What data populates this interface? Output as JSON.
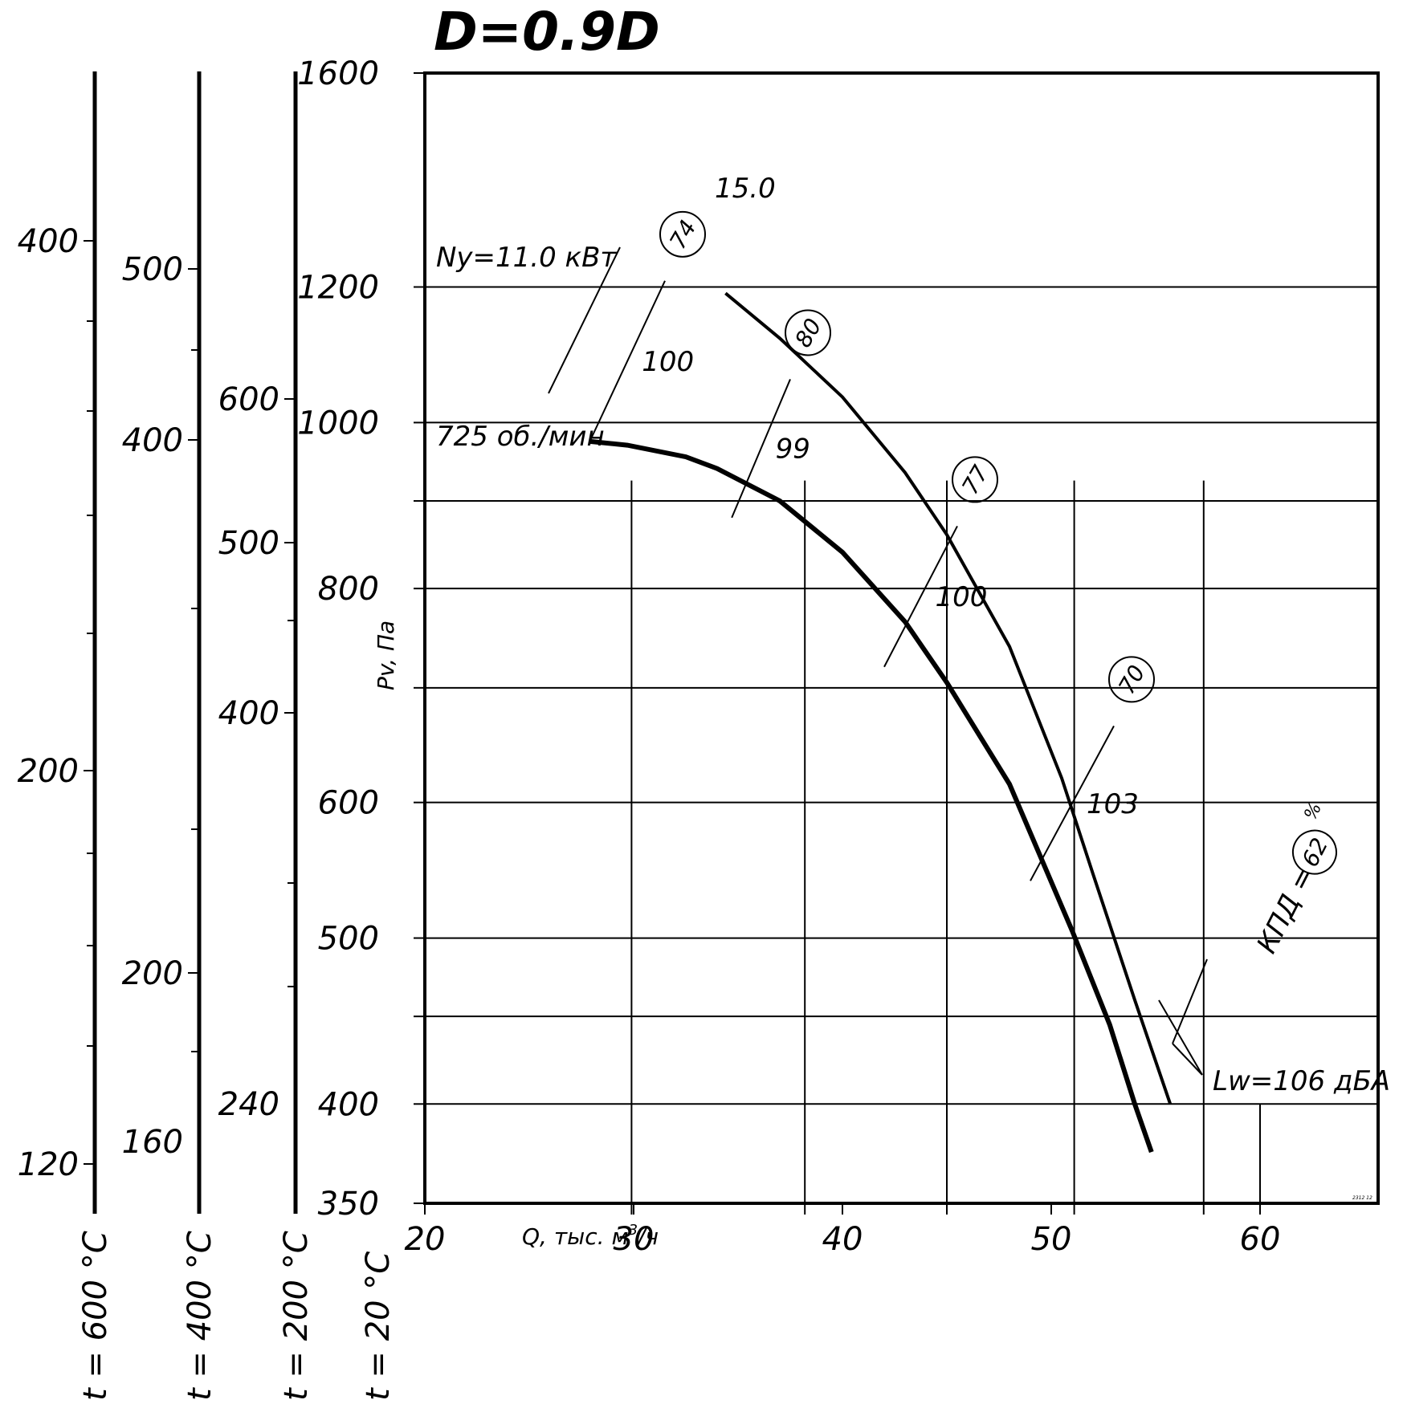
{
  "chart_data": {
    "type": "line",
    "title": "D=0.9D",
    "xlabel_main": "Q, тыс. м",
    "xlabel_sup": "3",
    "xlabel_tail": "/ч",
    "ylabel": "Pv, Па",
    "xlim": [
      20,
      67
    ],
    "ylim": [
      350,
      1600
    ],
    "y_scale": "log",
    "x_ticks": [
      "20",
      "30",
      "40",
      "50",
      "60"
    ],
    "x_tick_values": [
      20,
      30,
      40,
      50,
      60
    ],
    "x_grid": [
      29.9,
      38.2,
      45,
      51.1,
      57.3
    ],
    "y_ticks": [
      "1600",
      "1200",
      "1000",
      "800",
      "600",
      "500",
      "400",
      "350"
    ],
    "y_tick_values": [
      1600,
      1200,
      1000,
      800,
      600,
      500,
      400,
      350
    ],
    "y_grid": [
      1600,
      1200,
      1000,
      900,
      800,
      700,
      600,
      500,
      450,
      400,
      350
    ],
    "speed_label": "725 об./мин.",
    "power_label": "Ny=11.0 кВт",
    "power_value_label": "15.0",
    "efficiency_label": "КПД =",
    "percent_label": "%",
    "sound_label": "Lw=106 дБА",
    "small_code": "2312 12",
    "series": [
      {
        "name": "Ny=11.0 кВт",
        "points": [
          [
            27.9,
            975
          ],
          [
            29.7,
            970
          ],
          [
            32.5,
            955
          ],
          [
            34,
            940
          ],
          [
            37,
            900
          ],
          [
            40,
            840
          ],
          [
            43,
            765
          ],
          [
            45,
            705
          ],
          [
            48,
            615
          ],
          [
            51,
            505
          ],
          [
            52.8,
            445
          ],
          [
            54,
            400
          ],
          [
            54.8,
            375
          ]
        ]
      },
      {
        "name": "15.0",
        "points": [
          [
            34.4,
            1190
          ],
          [
            37,
            1120
          ],
          [
            40,
            1035
          ],
          [
            43,
            935
          ],
          [
            45,
            860
          ],
          [
            48,
            740
          ],
          [
            50.5,
            620
          ],
          [
            52,
            545
          ],
          [
            54,
            460
          ],
          [
            55.7,
            400
          ]
        ]
      }
    ],
    "iso_lines": [
      {
        "label": "100",
        "badge": "74",
        "points": [
          [
            27.9,
            975
          ],
          [
            31.5,
            1210
          ]
        ]
      },
      {
        "label": "99",
        "badge": "80",
        "points": [
          [
            34.7,
            880
          ],
          [
            37.5,
            1060
          ]
        ]
      },
      {
        "label": "100",
        "badge": "77",
        "points": [
          [
            42,
            720
          ],
          [
            45.5,
            870
          ]
        ]
      },
      {
        "label": "103",
        "badge": "70",
        "points": [
          [
            49,
            540
          ],
          [
            53,
            665
          ]
        ]
      }
    ],
    "efficiency_badge": "62",
    "temperature_scales": [
      {
        "label": "t = 600 °C",
        "ticks": [
          "400",
          "200",
          "120"
        ]
      },
      {
        "label": "t = 400 °C",
        "ticks": [
          "500",
          "400",
          "200",
          "160"
        ]
      },
      {
        "label": "t = 200 °C",
        "ticks": [
          "600",
          "500",
          "400",
          "240"
        ]
      },
      {
        "label": "t = 20 °C",
        "ticks": []
      }
    ]
  }
}
